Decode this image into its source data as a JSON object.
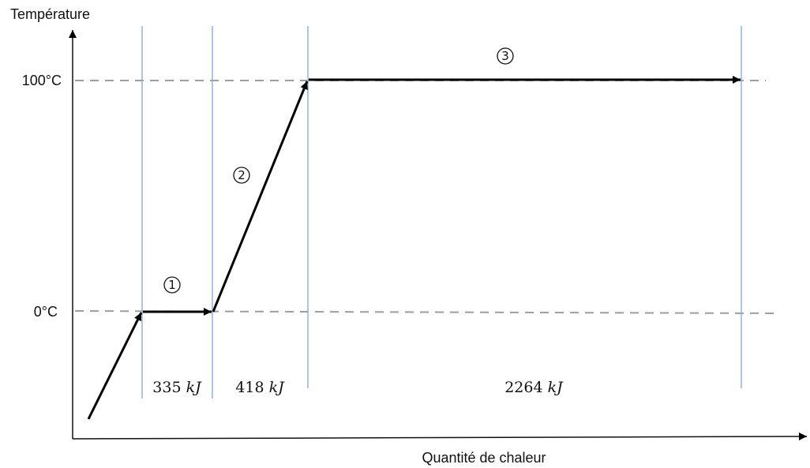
{
  "chart_data": {
    "type": "line",
    "title": "",
    "ylabel": "Température",
    "xlabel": "Quantité de chaleur",
    "ytick_labels": [
      "100°C",
      "0°C"
    ],
    "reference_levels": [
      {
        "label": "100°C",
        "value": 100
      },
      {
        "label": "0°C",
        "value": 0
      }
    ],
    "segments": [
      {
        "marker": "①",
        "energy_value": "335",
        "energy_unit": "kJ",
        "temp_start": 0,
        "temp_end": 0
      },
      {
        "marker": "②",
        "energy_value": "418",
        "energy_unit": "kJ",
        "temp_start": 0,
        "temp_end": 100
      },
      {
        "marker": "③",
        "energy_value": "2264",
        "energy_unit": "kJ",
        "temp_start": 100,
        "temp_end": 100
      }
    ],
    "grid": false,
    "legend": "none"
  },
  "colors": {
    "curve": "#000000",
    "axes": "#111111",
    "reference_lines": "#9e9e9e",
    "boundary_lines": "#8fb2dd"
  }
}
